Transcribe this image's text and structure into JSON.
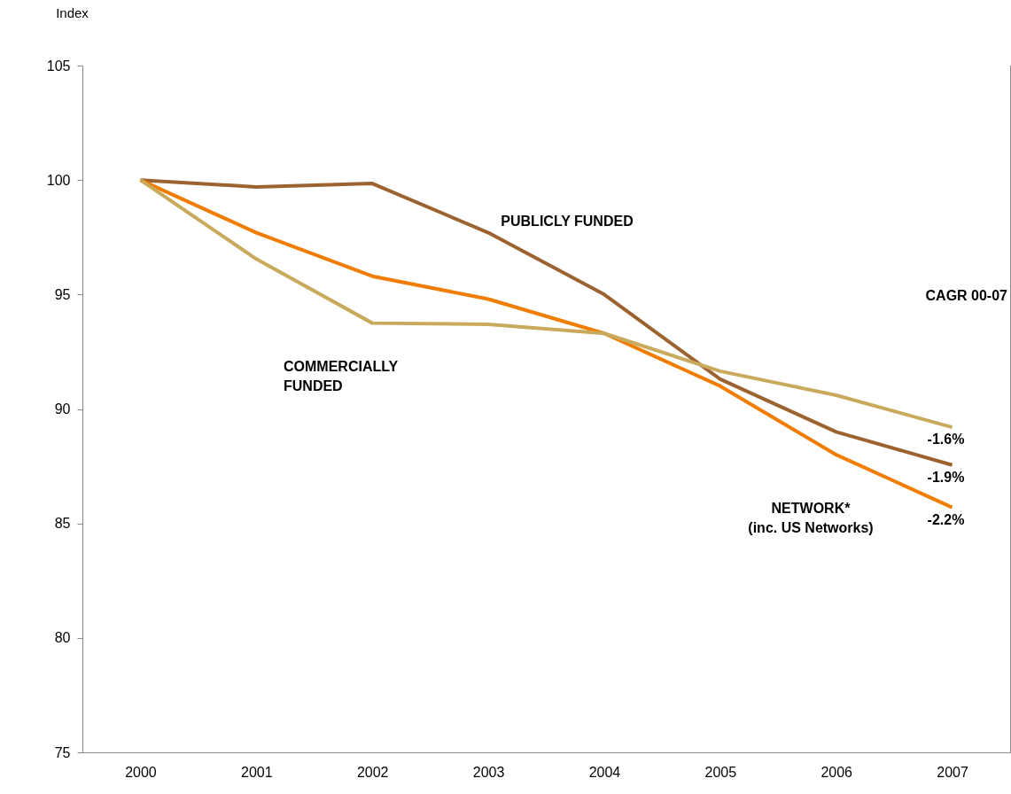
{
  "chart_data": {
    "type": "line",
    "ylabel": "Index",
    "categories": [
      "2000",
      "2001",
      "2002",
      "2003",
      "2004",
      "2005",
      "2006",
      "2007"
    ],
    "ylim": [
      75,
      105
    ],
    "yticks": [
      75,
      80,
      85,
      90,
      95,
      100,
      105
    ],
    "grid": false,
    "marker": "none",
    "line_style": "solid",
    "series": [
      {
        "name": "PUBLICLY FUNDED",
        "color": "#9c6330",
        "values": [
          100,
          99.7,
          99.85,
          97.7,
          95.0,
          91.3,
          89.0,
          87.55
        ]
      },
      {
        "name": "NETWORK*\n(inc. US Networks)",
        "color": "#f07d00",
        "values": [
          100,
          97.7,
          95.8,
          94.8,
          93.3,
          91.0,
          88.0,
          85.7
        ]
      },
      {
        "name": "COMMERCIALLY\nFUNDED",
        "color": "#c9a95c",
        "values": [
          100,
          96.55,
          93.75,
          93.7,
          93.3,
          91.65,
          90.6,
          89.2
        ]
      }
    ],
    "annotations": [
      "CAGR 00-07",
      {
        "text": "-1.6%",
        "x": "2007",
        "y": 89.2
      },
      {
        "text": "-1.9%",
        "x": "2007",
        "y": 87.55
      },
      {
        "text": "-2.2%",
        "x": "2007",
        "y": 85.7
      }
    ]
  }
}
